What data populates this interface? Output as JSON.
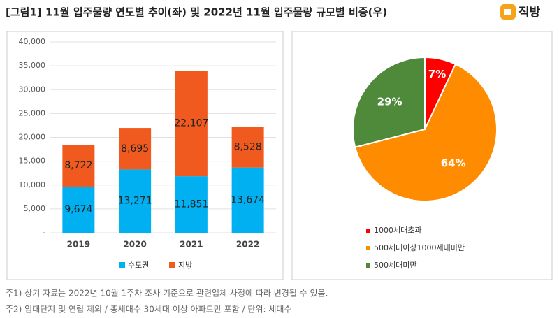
{
  "title": "[그림1] 11월 입주물량 연도별 추이(좌) 및 2022년 11월 입주물량 규모별 비중(우)",
  "logo": "직방",
  "notes": [
    "주1) 상기 자료는 2022년 10월 1주차 조사 기준으로 관련업체 사정에 따라 변경될 수 있음.",
    "주2) 임대단지 및 연립 제외 / 총세대수 30세대 이상 아파트만 포함 / 단위: 세대수"
  ],
  "chart_data": [
    {
      "type": "bar",
      "stacked": true,
      "categories": [
        "2019",
        "2020",
        "2021",
        "2022"
      ],
      "series": [
        {
          "name": "수도권",
          "color": "#00b0f0",
          "values": [
            9674,
            13271,
            11851,
            13674
          ],
          "value_labels": [
            "9,674",
            "13,271",
            "11,851",
            "13,674"
          ]
        },
        {
          "name": "지방",
          "color": "#f05a1e",
          "values": [
            8722,
            8695,
            22107,
            8528
          ],
          "value_labels": [
            "8,722",
            "8,695",
            "22,107",
            "8,528"
          ]
        }
      ],
      "ylim": [
        0,
        40000
      ],
      "yticks": [
        {
          "value": 0,
          "label": "-"
        },
        {
          "value": 5000,
          "label": "5,000"
        },
        {
          "value": 10000,
          "label": "10,000"
        },
        {
          "value": 15000,
          "label": "15,000"
        },
        {
          "value": 20000,
          "label": "20,000"
        },
        {
          "value": 25000,
          "label": "25,000"
        },
        {
          "value": 30000,
          "label": "30,000"
        },
        {
          "value": 35000,
          "label": "35,000"
        },
        {
          "value": 40000,
          "label": "40,000"
        }
      ],
      "grid": true,
      "legend": "bottom"
    },
    {
      "type": "pie",
      "categories": [
        "1000세대초과",
        "500세대이상1000세대미만",
        "500세대미만"
      ],
      "values": [
        7,
        64,
        29
      ],
      "value_labels": [
        "7%",
        "64%",
        "29%"
      ],
      "colors": [
        "#ff0000",
        "#ff8c00",
        "#4e8a3a"
      ],
      "legend": "bottom-left"
    }
  ]
}
